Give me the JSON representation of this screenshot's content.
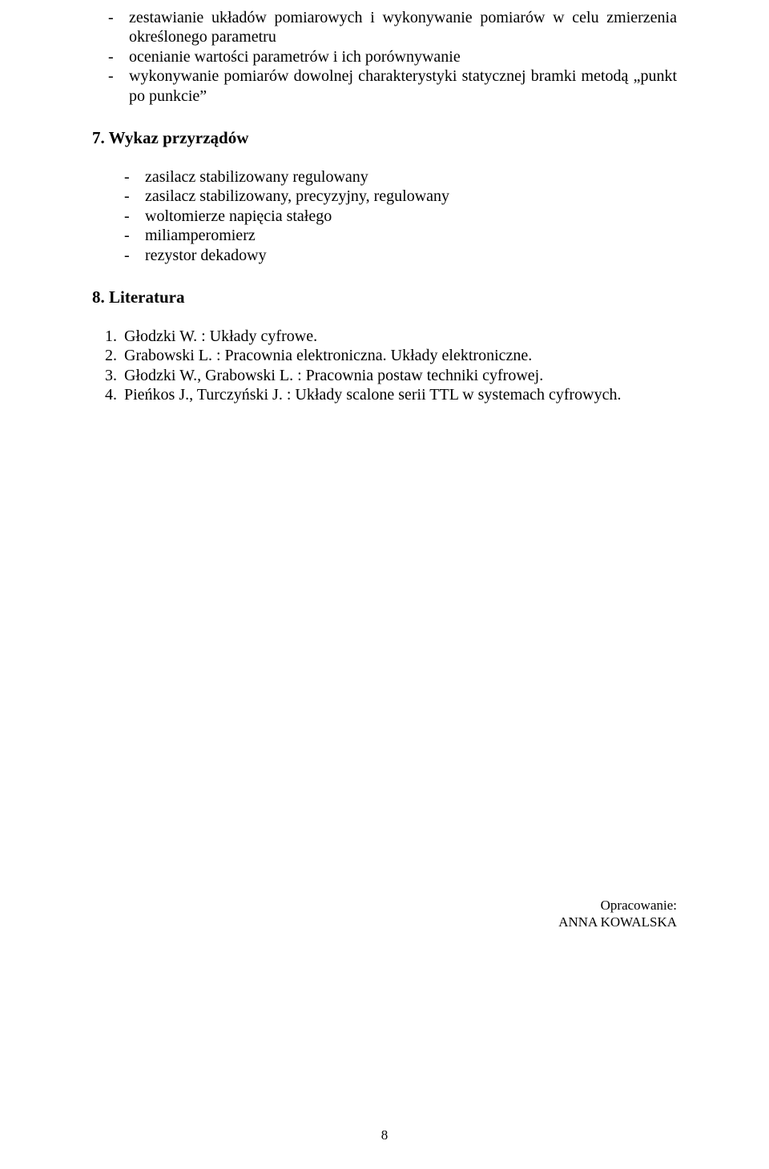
{
  "topBullets": [
    "zestawianie układów pomiarowych i wykonywanie pomiarów w celu zmierzenia określonego parametru",
    "ocenianie wartości parametrów i ich porównywanie",
    "wykonywanie pomiarów dowolnej charakterystyki statycznej bramki metodą „punkt po punkcie”"
  ],
  "section7": "7. Wykaz przyrządów",
  "equipment": [
    "zasilacz stabilizowany regulowany",
    "zasilacz stabilizowany, precyzyjny, regulowany",
    "woltomierze napięcia stałego",
    "miliamperomierz",
    "rezystor dekadowy"
  ],
  "section8": "8. Literatura",
  "references": [
    "Głodzki W. : Układy cyfrowe.",
    "Grabowski L. : Pracownia elektroniczna. Układy elektroniczne.",
    "Głodzki W., Grabowski L. : Pracownia postaw techniki cyfrowej.",
    "Pieńkos J., Turczyński J. : Układy scalone serii TTL w systemach cyfrowych."
  ],
  "creditLabel": "Opracowanie:",
  "creditName": "ANNA KOWALSKA",
  "pageNumber": "8"
}
